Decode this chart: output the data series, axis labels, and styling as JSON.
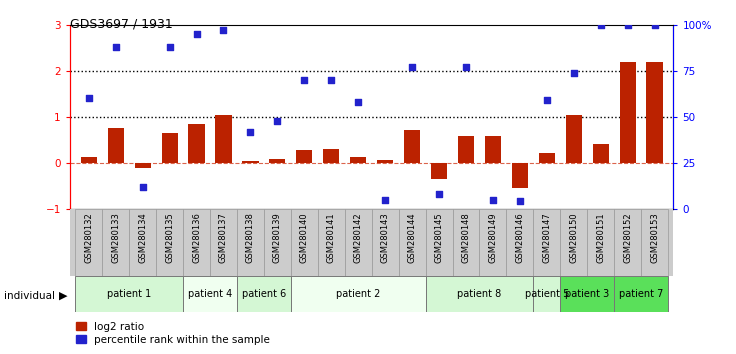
{
  "title": "GDS3697 / 1931",
  "samples": [
    "GSM280132",
    "GSM280133",
    "GSM280134",
    "GSM280135",
    "GSM280136",
    "GSM280137",
    "GSM280138",
    "GSM280139",
    "GSM280140",
    "GSM280141",
    "GSM280142",
    "GSM280143",
    "GSM280144",
    "GSM280145",
    "GSM280148",
    "GSM280149",
    "GSM280146",
    "GSM280147",
    "GSM280150",
    "GSM280151",
    "GSM280152",
    "GSM280153"
  ],
  "log2_ratio": [
    0.12,
    0.75,
    -0.12,
    0.65,
    0.85,
    1.03,
    0.05,
    0.08,
    0.28,
    0.3,
    0.13,
    0.07,
    0.72,
    -0.35,
    0.58,
    0.58,
    -0.55,
    0.22,
    1.05,
    0.4,
    2.2,
    2.2
  ],
  "percentile_rank": [
    60,
    88,
    12,
    88,
    95,
    97,
    42,
    48,
    70,
    70,
    58,
    5,
    77,
    8,
    77,
    5,
    4,
    59,
    74,
    100,
    100,
    100
  ],
  "patients": [
    {
      "label": "patient 1",
      "start": 0,
      "end": 4
    },
    {
      "label": "patient 4",
      "start": 4,
      "end": 6
    },
    {
      "label": "patient 6",
      "start": 6,
      "end": 8
    },
    {
      "label": "patient 2",
      "start": 8,
      "end": 13
    },
    {
      "label": "patient 8",
      "start": 13,
      "end": 17
    },
    {
      "label": "patient 5",
      "start": 17,
      "end": 18
    },
    {
      "label": "patient 3",
      "start": 18,
      "end": 20
    },
    {
      "label": "patient 7",
      "start": 20,
      "end": 22
    }
  ],
  "patient_colors": [
    "#d4f7d4",
    "#f0fff0",
    "#d4f7d4",
    "#f0fff0",
    "#d4f7d4",
    "#d4f7d4",
    "#5ae05a",
    "#5ae05a"
  ],
  "bar_color": "#bb2200",
  "dot_color": "#2222cc",
  "ylim_left": [
    -1,
    3
  ],
  "ylim_right": [
    0,
    100
  ],
  "yticks_left": [
    -1,
    0,
    1,
    2,
    3
  ],
  "yticks_right": [
    0,
    25,
    50,
    75,
    100
  ],
  "hline1": 1.0,
  "hline2": 2.0,
  "hline_zero_color": "#cc2200"
}
